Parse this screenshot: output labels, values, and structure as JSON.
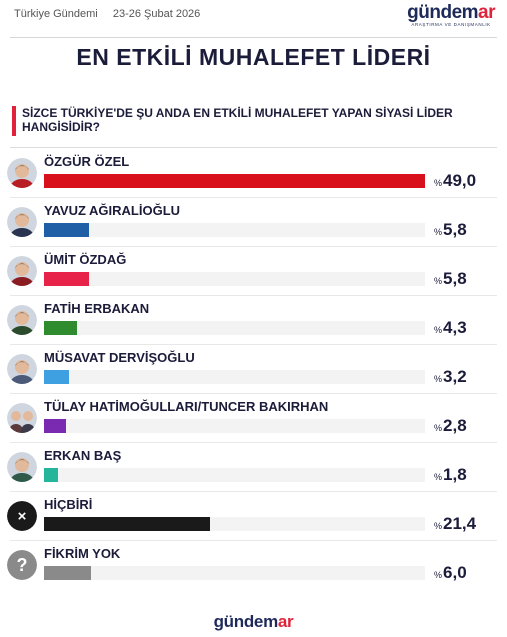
{
  "header": {
    "source": "Türkiye Gündemi",
    "date": "23-26 Şubat 2026",
    "brand_main": "gündem",
    "brand_accent": "ar",
    "brand_tagline": "ARAŞTIRMA VE DANIŞMANLIK"
  },
  "title": "EN ETKİLİ MUHALEFET LİDERİ",
  "question": "SİZCE TÜRKİYE'DE ŞU ANDA EN ETKİLİ MUHALEFET YAPAN SİYASİ LİDER HANGİSİDİR?",
  "percent_sign": "%",
  "footer": {
    "brand_main": "gündem",
    "brand_accent": "ar"
  },
  "chart_data": {
    "type": "bar",
    "orientation": "horizontal",
    "categories": [
      "ÖZGÜR ÖZEL",
      "YAVUZ AĞIRALİOĞLU",
      "ÜMİT ÖZDAĞ",
      "FATİH ERBAKAN",
      "MÜSAVAT DERVİŞOĞLU",
      "TÜLAY HATİMOĞULLARI/TUNCER BAKIRHAN",
      "ERKAN BAŞ",
      "HİÇBİRİ",
      "FİKRİM YOK"
    ],
    "values": [
      49.0,
      5.8,
      5.8,
      4.3,
      3.2,
      2.8,
      1.8,
      21.4,
      6.0
    ],
    "value_labels": [
      "49,0",
      "5,8",
      "5,8",
      "4,3",
      "3,2",
      "2,8",
      "1,8",
      "21,4",
      "6,0"
    ],
    "colors": [
      "#d8101c",
      "#1f5fa5",
      "#e8234a",
      "#2e8b2e",
      "#3ea0e0",
      "#7a2ab0",
      "#25b59a",
      "#1a1a1a",
      "#8a8a8a"
    ],
    "avatars": [
      "person-photo",
      "person-photo",
      "person-photo",
      "person-photo",
      "person-photo",
      "two-person-photo",
      "person-photo",
      "x-icon",
      "question-icon"
    ],
    "avatar_colors": [
      "#b81d24",
      "#2a3450",
      "#8a1c22",
      "#2c4a2c",
      "#4a5a78",
      "#6a4a5a",
      "#2f5a4a",
      "#1a1a1a",
      "#8a8a8a"
    ],
    "xlim": [
      0,
      49.0
    ],
    "title": "EN ETKİLİ MUHALEFET LİDERİ",
    "xlabel": "",
    "ylabel": "",
    "grid": false,
    "legend": "none"
  }
}
